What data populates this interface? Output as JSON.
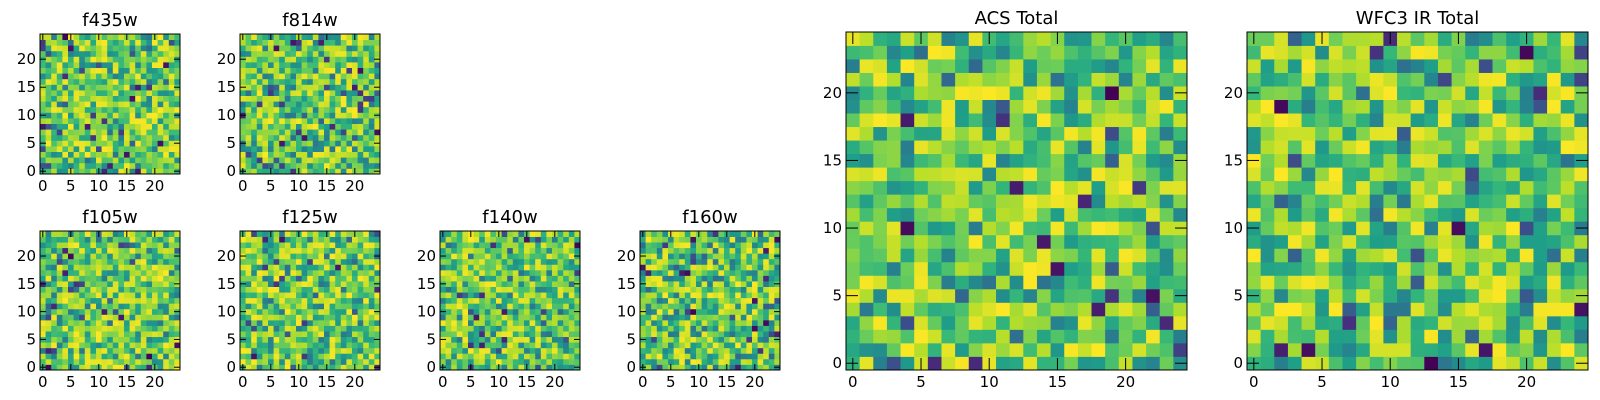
{
  "chart_data": [
    {
      "type": "heatmap",
      "title": "f435w",
      "grid_size": 25,
      "xticks": [
        0,
        5,
        10,
        15,
        20
      ],
      "yticks": [
        0,
        5,
        10,
        15,
        20
      ],
      "xlim": [
        -0.5,
        24.5
      ],
      "ylim": [
        -0.5,
        24.5
      ],
      "colormap": "viridis",
      "seed": 11
    },
    {
      "type": "heatmap",
      "title": "f814w",
      "grid_size": 25,
      "xticks": [
        0,
        5,
        10,
        15,
        20
      ],
      "yticks": [
        0,
        5,
        10,
        15,
        20
      ],
      "xlim": [
        -0.5,
        24.5
      ],
      "ylim": [
        -0.5,
        24.5
      ],
      "colormap": "viridis",
      "seed": 23
    },
    {
      "type": "heatmap",
      "title": "f105w",
      "grid_size": 25,
      "xticks": [
        0,
        5,
        10,
        15,
        20
      ],
      "yticks": [
        0,
        5,
        10,
        15,
        20
      ],
      "xlim": [
        -0.5,
        24.5
      ],
      "ylim": [
        -0.5,
        24.5
      ],
      "colormap": "viridis",
      "seed": 37
    },
    {
      "type": "heatmap",
      "title": "f125w",
      "grid_size": 25,
      "xticks": [
        0,
        5,
        10,
        15,
        20
      ],
      "yticks": [
        0,
        5,
        10,
        15,
        20
      ],
      "xlim": [
        -0.5,
        24.5
      ],
      "ylim": [
        -0.5,
        24.5
      ],
      "colormap": "viridis",
      "seed": 41
    },
    {
      "type": "heatmap",
      "title": "f140w",
      "grid_size": 25,
      "xticks": [
        0,
        5,
        10,
        15,
        20
      ],
      "yticks": [
        0,
        5,
        10,
        15,
        20
      ],
      "xlim": [
        -0.5,
        24.5
      ],
      "ylim": [
        -0.5,
        24.5
      ],
      "colormap": "viridis",
      "seed": 53
    },
    {
      "type": "heatmap",
      "title": "f160w",
      "grid_size": 25,
      "xticks": [
        0,
        5,
        10,
        15,
        20
      ],
      "yticks": [
        0,
        5,
        10,
        15,
        20
      ],
      "xlim": [
        -0.5,
        24.5
      ],
      "ylim": [
        -0.5,
        24.5
      ],
      "colormap": "viridis",
      "seed": 67
    },
    {
      "type": "heatmap",
      "title": "ACS Total",
      "grid_size": 25,
      "xticks": [
        0,
        5,
        10,
        15,
        20
      ],
      "yticks": [
        0,
        5,
        10,
        15,
        20
      ],
      "xlim": [
        -0.5,
        24.5
      ],
      "ylim": [
        -0.5,
        24.5
      ],
      "colormap": "viridis",
      "seed": 79
    },
    {
      "type": "heatmap",
      "title": "WFC3 IR Total",
      "grid_size": 25,
      "xticks": [
        0,
        5,
        10,
        15,
        20
      ],
      "yticks": [
        0,
        5,
        10,
        15,
        20
      ],
      "xlim": [
        -0.5,
        24.5
      ],
      "ylim": [
        -0.5,
        24.5
      ],
      "colormap": "viridis",
      "seed": 97
    }
  ]
}
